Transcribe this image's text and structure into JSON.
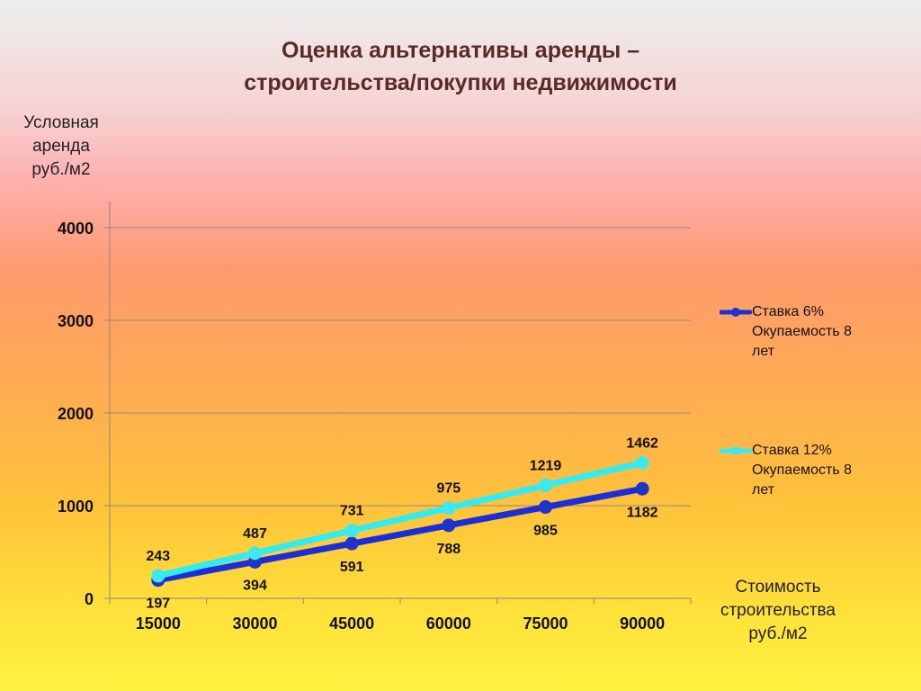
{
  "title": {
    "line1": "Оценка альтернативы аренды –",
    "line2": "строительства/покупки недвижимости"
  },
  "chart_data": {
    "type": "line",
    "ylabel_lines": [
      "Условная",
      "аренда",
      "руб./м2"
    ],
    "xlabel_lines": [
      "Стоимость",
      "строительства",
      "руб./м2"
    ],
    "categories": [
      "15000",
      "30000",
      "45000",
      "60000",
      "75000",
      "90000"
    ],
    "yticks": [
      "0",
      "1000",
      "2000",
      "3000",
      "4000"
    ],
    "ylim": [
      0,
      4000
    ],
    "grid": true,
    "legend_position": "right",
    "series": [
      {
        "name_lines": [
          "Ставка 6%",
          "Окупаемость 8",
          "лет"
        ],
        "values": [
          197,
          394,
          591,
          788,
          985,
          1182
        ],
        "color": "#1c2fd6",
        "marker_color": "#2233cc",
        "label_position": "below"
      },
      {
        "name_lines": [
          "Ставка 12%",
          "Окупаемость 8",
          "лет"
        ],
        "values": [
          243,
          487,
          731,
          975,
          1219,
          1462
        ],
        "color": "#33ecf2",
        "marker_color": "#3ee8ee",
        "label_position": "above"
      }
    ]
  }
}
